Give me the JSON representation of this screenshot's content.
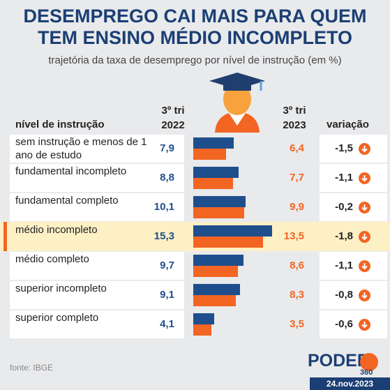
{
  "chart_data": {
    "type": "bar",
    "title": "DESEMPREGO CAI MAIS PARA QUEM TEM ENSINO MÉDIO INCOMPLETO",
    "subtitle": "trajetória da taxa de desemprego por nível de instrução (em %)",
    "category_label": "nível de instrução",
    "categories": [
      "sem instrução e menos de 1 ano de estudo",
      "fundamental incompleto",
      "fundamental completo",
      "médio incompleto",
      "médio completo",
      "superior incompleto",
      "superior completo"
    ],
    "series": [
      {
        "name": "3º tri 2022",
        "color": "#1f4e8c",
        "values": [
          7.9,
          8.8,
          10.1,
          15.3,
          9.7,
          9.1,
          4.1
        ],
        "value_labels": [
          "7,9",
          "8,8",
          "10,1",
          "15,3",
          "9,7",
          "9,1",
          "4,1"
        ]
      },
      {
        "name": "3º tri 2023",
        "color": "#f26522",
        "values": [
          6.4,
          7.7,
          9.9,
          13.5,
          8.6,
          8.3,
          3.5
        ],
        "value_labels": [
          "6,4",
          "7,7",
          "9,9",
          "13,5",
          "8,6",
          "8,3",
          "3,5"
        ]
      }
    ],
    "change": {
      "name": "variação",
      "values": [
        -1.5,
        -1.1,
        -0.2,
        -1.8,
        -1.1,
        -0.8,
        -0.6
      ],
      "value_labels": [
        "-1,5",
        "-1,1",
        "-0,2",
        "-1,8",
        "-1,1",
        "-0,8",
        "-0,6"
      ]
    },
    "highlight_category": "médio incompleto",
    "source": "fonte: IBGE",
    "brand": {
      "name": "PODER",
      "number": "360"
    },
    "date": "24.nov.2023"
  }
}
